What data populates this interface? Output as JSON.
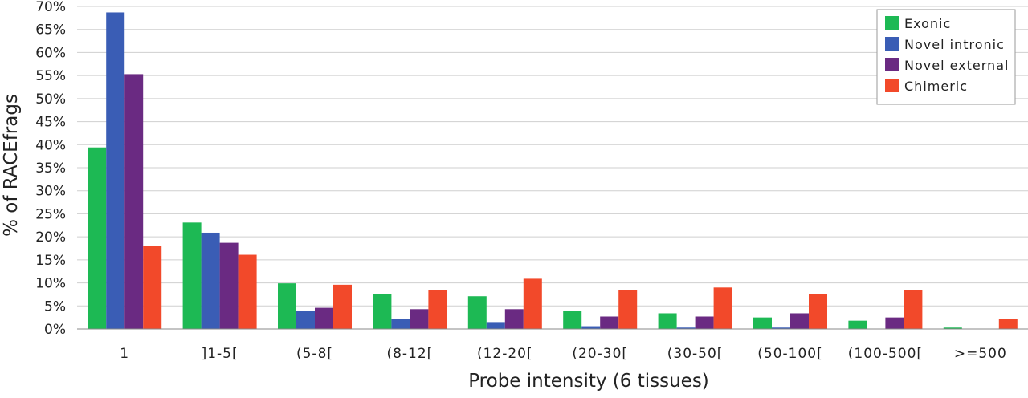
{
  "chart_data": {
    "type": "bar",
    "title": "",
    "xlabel": "Probe intensity (6 tissues)",
    "ylabel": "% of RACEfrags",
    "ylim": [
      0,
      70
    ],
    "y_ticks": [
      "0%",
      "5%",
      "10%",
      "15%",
      "20%",
      "25%",
      "30%",
      "35%",
      "40%",
      "45%",
      "50%",
      "55%",
      "60%",
      "65%",
      "70%"
    ],
    "grid": true,
    "legend_position": "top-right",
    "categories": [
      "1",
      "]1-5[",
      "(5-8[",
      "(8-12[",
      "(12-20[",
      "(20-30[",
      "(30-50[",
      "(50-100[",
      "(100-500[",
      ">=500"
    ],
    "series": [
      {
        "name": "Exonic",
        "color": "#1db954",
        "values": [
          39.4,
          23.1,
          9.9,
          7.5,
          7.1,
          4.0,
          3.4,
          2.5,
          1.8,
          0.3
        ]
      },
      {
        "name": "Novel intronic",
        "color": "#3a5db5",
        "values": [
          68.7,
          20.9,
          4.0,
          2.1,
          1.5,
          0.6,
          0.3,
          0.3,
          0.0,
          0.0
        ]
      },
      {
        "name": "Novel external",
        "color": "#6a2a82",
        "values": [
          55.3,
          18.7,
          4.6,
          4.3,
          4.3,
          2.7,
          2.7,
          3.4,
          2.5,
          0.0
        ]
      },
      {
        "name": "Chimeric",
        "color": "#f2492a",
        "values": [
          18.1,
          16.1,
          9.6,
          8.4,
          10.9,
          8.4,
          9.0,
          7.5,
          8.4,
          2.1
        ]
      }
    ]
  }
}
